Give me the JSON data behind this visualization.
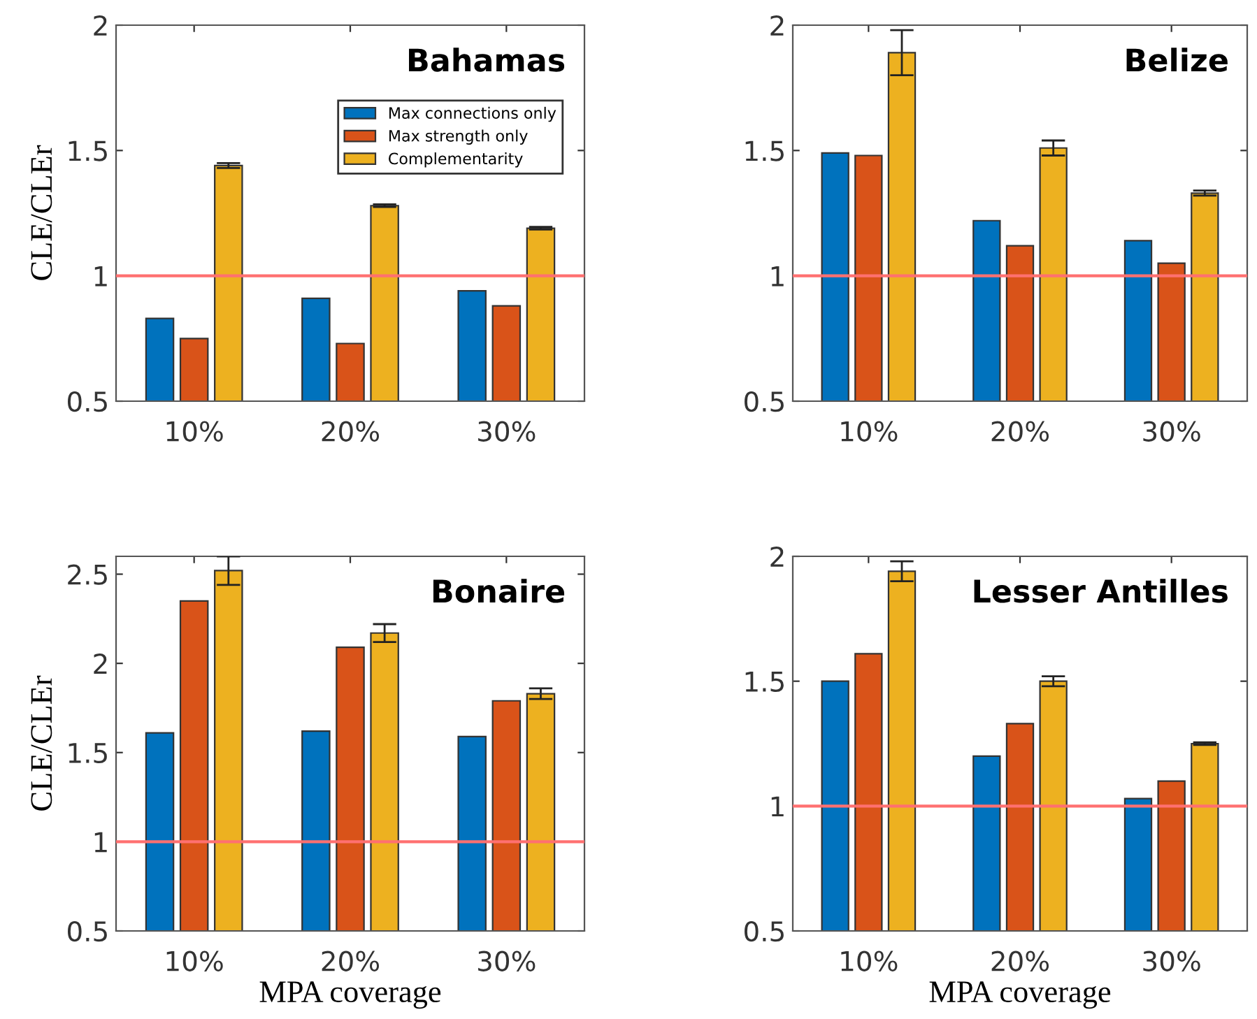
{
  "chart_data": [
    {
      "type": "bar",
      "title": "Bahamas",
      "ylabel": "CLE/CLEr",
      "categories": [
        "10%",
        "20%",
        "30%"
      ],
      "ylim": [
        0.5,
        2
      ],
      "yticks": [
        0.5,
        1,
        1.5,
        2
      ],
      "legend": "top right",
      "grid": false,
      "ref_lines": [
        {
          "axis": "y",
          "value": 1,
          "color": "#ff7070"
        }
      ],
      "series": [
        {
          "name": "Max connections only",
          "color": "#0072bd",
          "values": [
            0.83,
            0.91,
            0.94
          ]
        },
        {
          "name": "Max strength only",
          "color": "#d95319",
          "values": [
            0.75,
            0.73,
            0.88
          ]
        },
        {
          "name": "Complementarity",
          "color": "#edb120",
          "values": [
            1.44,
            1.28,
            1.19
          ],
          "errors": [
            0.01,
            0.005,
            0.005
          ]
        }
      ]
    },
    {
      "type": "bar",
      "title": "Belize",
      "categories": [
        "10%",
        "20%",
        "30%"
      ],
      "ylim": [
        0.5,
        2
      ],
      "yticks": [
        0.5,
        1,
        1.5,
        2
      ],
      "grid": false,
      "ref_lines": [
        {
          "axis": "y",
          "value": 1,
          "color": "#ff7070"
        }
      ],
      "series": [
        {
          "color": "#0072bd",
          "values": [
            1.49,
            1.22,
            1.14
          ]
        },
        {
          "color": "#d95319",
          "values": [
            1.48,
            1.12,
            1.05
          ]
        },
        {
          "color": "#edb120",
          "values": [
            1.89,
            1.51,
            1.33
          ],
          "errors": [
            0.09,
            0.03,
            0.01
          ]
        }
      ]
    },
    {
      "type": "bar",
      "title": "Bonaire",
      "ylabel": "CLE/CLEr",
      "xlabel": "MPA coverage",
      "categories": [
        "10%",
        "20%",
        "30%"
      ],
      "ylim": [
        0.5,
        2.6
      ],
      "yticks": [
        0.5,
        1,
        1.5,
        2,
        2.5
      ],
      "grid": false,
      "ref_lines": [
        {
          "axis": "y",
          "value": 1,
          "color": "#ff7070"
        }
      ],
      "series": [
        {
          "color": "#0072bd",
          "values": [
            1.61,
            1.62,
            1.59
          ]
        },
        {
          "color": "#d95319",
          "values": [
            2.35,
            2.09,
            1.79
          ]
        },
        {
          "color": "#edb120",
          "values": [
            2.52,
            2.17,
            1.83
          ],
          "errors": [
            0.08,
            0.05,
            0.03
          ]
        }
      ]
    },
    {
      "type": "bar",
      "title": "Lesser Antilles",
      "xlabel": "MPA coverage",
      "categories": [
        "10%",
        "20%",
        "30%"
      ],
      "ylim": [
        0.5,
        2
      ],
      "yticks": [
        0.5,
        1,
        1.5,
        2
      ],
      "grid": false,
      "ref_lines": [
        {
          "axis": "y",
          "value": 1,
          "color": "#ff7070"
        }
      ],
      "series": [
        {
          "color": "#0072bd",
          "values": [
            1.5,
            1.2,
            1.03
          ]
        },
        {
          "color": "#d95319",
          "values": [
            1.61,
            1.33,
            1.1
          ]
        },
        {
          "color": "#edb120",
          "values": [
            1.94,
            1.5,
            1.25
          ],
          "errors": [
            0.04,
            0.02,
            0.005
          ]
        }
      ]
    }
  ]
}
